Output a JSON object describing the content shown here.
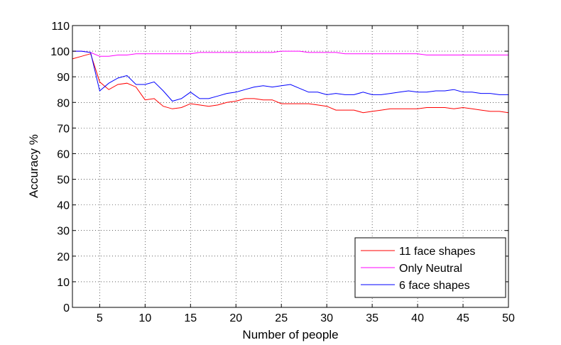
{
  "chart_data": {
    "type": "line",
    "xlabel": "Number of people",
    "ylabel": "Accuracy %",
    "xlim": [
      2,
      50
    ],
    "ylim": [
      0,
      110
    ],
    "xticks": [
      5,
      10,
      15,
      20,
      25,
      30,
      35,
      40,
      45,
      50
    ],
    "yticks": [
      0,
      10,
      20,
      30,
      40,
      50,
      60,
      70,
      80,
      90,
      100,
      110
    ],
    "grid": true,
    "legend_position": "bottom-right",
    "x": [
      2,
      3,
      4,
      5,
      6,
      7,
      8,
      9,
      10,
      11,
      12,
      13,
      14,
      15,
      16,
      17,
      18,
      19,
      20,
      21,
      22,
      23,
      24,
      25,
      26,
      27,
      28,
      29,
      30,
      31,
      32,
      33,
      34,
      35,
      36,
      37,
      38,
      39,
      40,
      41,
      42,
      43,
      44,
      45,
      46,
      47,
      48,
      49,
      50
    ],
    "series": [
      {
        "name": "11 face shapes",
        "color": "#ff0000",
        "values": [
          97,
          98,
          99,
          88,
          85,
          87,
          87.5,
          86,
          81,
          81.5,
          78.5,
          77.5,
          78,
          79.5,
          79,
          78.5,
          79,
          80,
          80.5,
          81.5,
          81.5,
          81,
          81,
          79.5,
          79.5,
          79.5,
          79.5,
          79,
          78.5,
          77,
          77,
          77,
          76,
          76.5,
          77,
          77.5,
          77.5,
          77.5,
          77.5,
          78,
          78,
          78,
          77.5,
          78,
          77.5,
          77,
          76.5,
          76.5,
          76
        ]
      },
      {
        "name": "Only Neutral",
        "color": "#ff00ff",
        "values": [
          100,
          100,
          99.5,
          98,
          98,
          98.5,
          98.5,
          99,
          99,
          99,
          99,
          99,
          99,
          99,
          99.5,
          99.5,
          99.5,
          99.5,
          99.5,
          99.5,
          99.5,
          99.5,
          99.5,
          100,
          100,
          100,
          99.5,
          99.5,
          99.5,
          99.5,
          99,
          99,
          99,
          99,
          99,
          99,
          99,
          99,
          99,
          98.5,
          98.5,
          98.5,
          98.5,
          98.5,
          98.5,
          98.5,
          98.5,
          98.5,
          98.5
        ]
      },
      {
        "name": "6 face shapes",
        "color": "#0000ff",
        "values": [
          100,
          100,
          99.5,
          84.5,
          87.5,
          89.5,
          90.5,
          87,
          87,
          88,
          84.5,
          80.5,
          81.5,
          84,
          81.5,
          81.5,
          82.5,
          83.5,
          84,
          85,
          86,
          86.5,
          86,
          86.5,
          87,
          85.5,
          84,
          84,
          83,
          83.5,
          83,
          83,
          84,
          83,
          83,
          83.5,
          84,
          84.5,
          84,
          84,
          84.5,
          84.5,
          85,
          84,
          84,
          83.5,
          83.5,
          83,
          83
        ]
      }
    ]
  }
}
